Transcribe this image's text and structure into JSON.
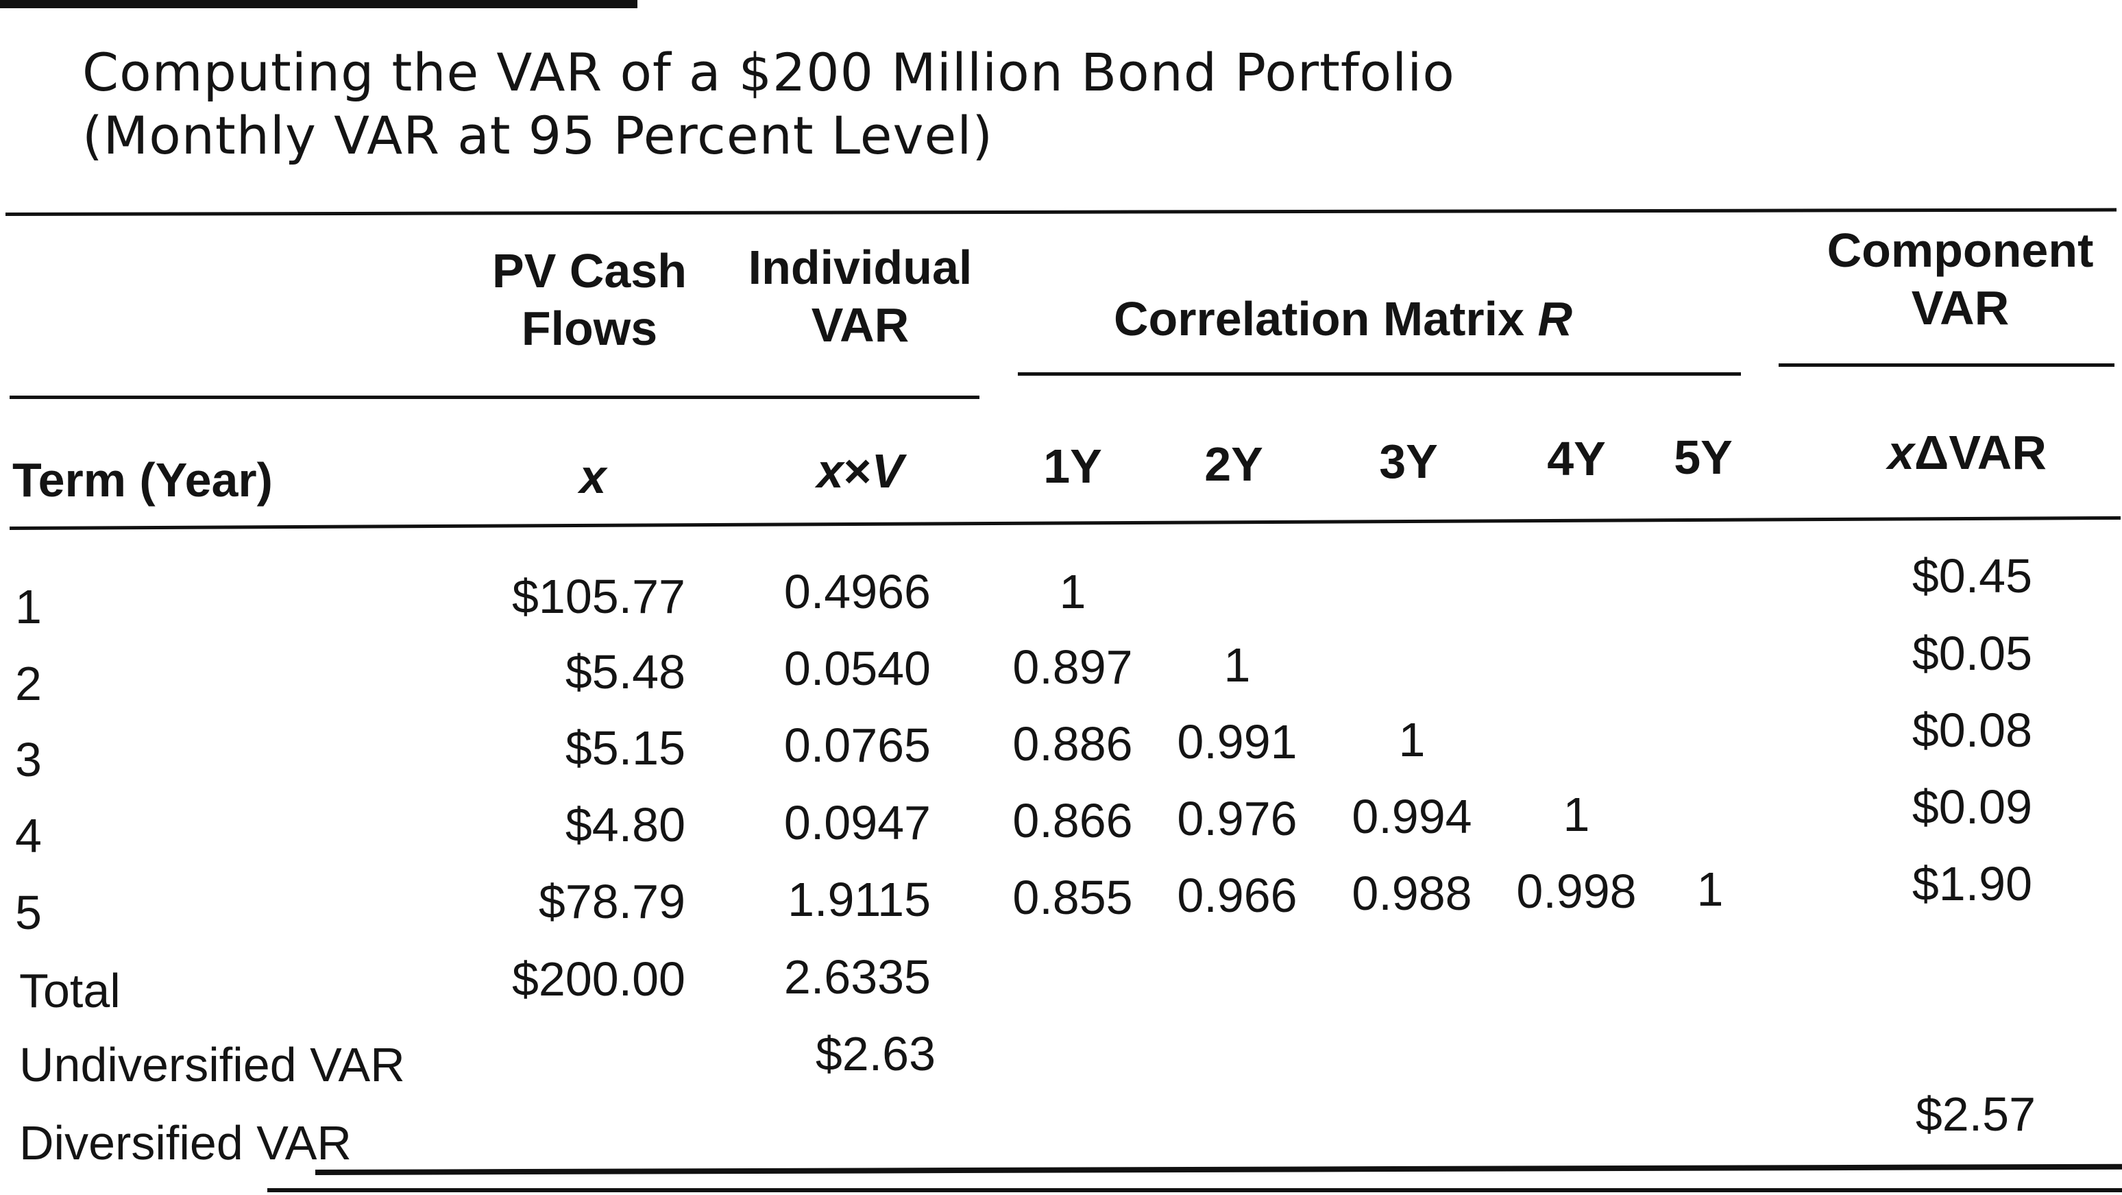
{
  "title": {
    "line1": "Computing the VAR of a $200 Million Bond Portfolio",
    "line2": "(Monthly VAR at 95 Percent Level)"
  },
  "headers": {
    "pv_line1": "PV Cash",
    "pv_line2": "Flows",
    "ind_line1": "Individual",
    "ind_line2": "VAR",
    "corr_prefix": "Correlation Matrix",
    "corr_symbol": "R",
    "comp_line1": "Component",
    "comp_line2": "VAR",
    "term": "Term (Year)",
    "x_symbol": "x",
    "xv_x": "x",
    "xv_times": "×",
    "xv_v": "V",
    "y1": "1Y",
    "y2": "2Y",
    "y3": "3Y",
    "y4": "4Y",
    "y5": "5Y",
    "xdvar_x": "x",
    "xdvar_rest": "ΔVAR"
  },
  "rows": [
    {
      "term": "1",
      "pv": "$105.77",
      "ivar": "0.4966",
      "c1": "1",
      "c2": "",
      "c3": "",
      "c4": "",
      "c5": "",
      "comp": "$0.45"
    },
    {
      "term": "2",
      "pv": "$5.48",
      "ivar": "0.0540",
      "c1": "0.897",
      "c2": "1",
      "c3": "",
      "c4": "",
      "c5": "",
      "comp": "$0.05"
    },
    {
      "term": "3",
      "pv": "$5.15",
      "ivar": "0.0765",
      "c1": "0.886",
      "c2": "0.991",
      "c3": "1",
      "c4": "",
      "c5": "",
      "comp": "$0.08"
    },
    {
      "term": "4",
      "pv": "$4.80",
      "ivar": "0.0947",
      "c1": "0.866",
      "c2": "0.976",
      "c3": "0.994",
      "c4": "1",
      "c5": "",
      "comp": "$0.09"
    },
    {
      "term": "5",
      "pv": "$78.79",
      "ivar": "1.9115",
      "c1": "0.855",
      "c2": "0.966",
      "c3": "0.988",
      "c4": "0.998",
      "c5": "1",
      "comp": "$1.90"
    }
  ],
  "total": {
    "label": "Total",
    "pv": "$200.00",
    "ivar": "2.6335"
  },
  "undiversified": {
    "label": "Undiversified VAR",
    "ivar": "$2.63"
  },
  "diversified": {
    "label": "Diversified VAR",
    "comp": "$2.57"
  }
}
